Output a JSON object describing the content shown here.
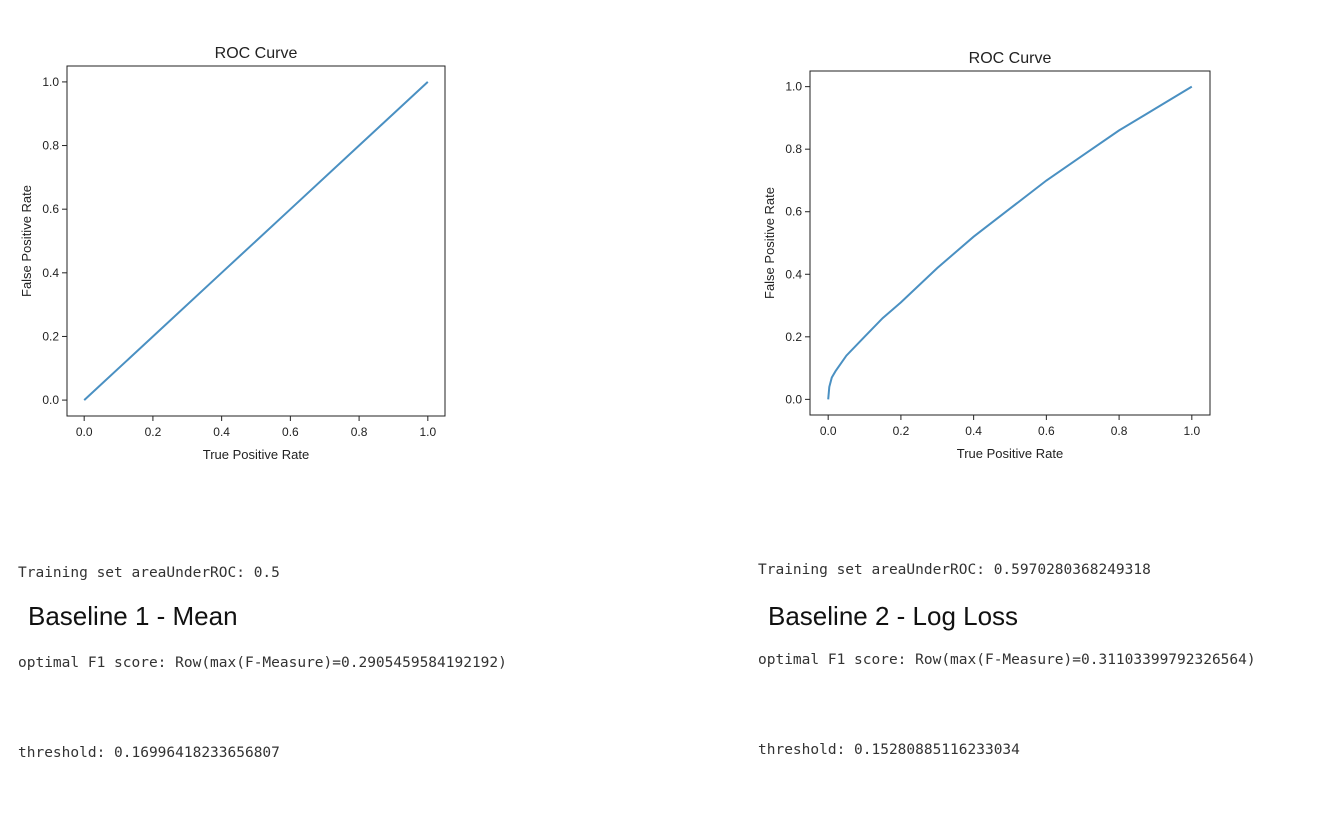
{
  "chart_data": [
    {
      "type": "line",
      "title": "ROC Curve",
      "xlabel": "True Positive Rate",
      "ylabel": "False Positive Rate",
      "xlim": [
        -0.05,
        1.05
      ],
      "ylim": [
        -0.05,
        1.05
      ],
      "xticks": [
        "0.0",
        "0.2",
        "0.4",
        "0.6",
        "0.8",
        "1.0"
      ],
      "yticks": [
        "0.0",
        "0.2",
        "0.4",
        "0.6",
        "0.8",
        "1.0"
      ],
      "grid": false,
      "color": "#4a90c2",
      "x": [
        0.0,
        0.2,
        0.4,
        0.6,
        0.8,
        1.0
      ],
      "y": [
        0.0,
        0.2,
        0.4,
        0.6,
        0.8,
        1.0
      ]
    },
    {
      "type": "line",
      "title": "ROC Curve",
      "xlabel": "True Positive Rate",
      "ylabel": "False Positive Rate",
      "xlim": [
        -0.05,
        1.05
      ],
      "ylim": [
        -0.05,
        1.05
      ],
      "xticks": [
        "0.0",
        "0.2",
        "0.4",
        "0.6",
        "0.8",
        "1.0"
      ],
      "yticks": [
        "0.0",
        "0.2",
        "0.4",
        "0.6",
        "0.8",
        "1.0"
      ],
      "grid": false,
      "color": "#4a90c2",
      "x": [
        0.0,
        0.003,
        0.01,
        0.02,
        0.05,
        0.1,
        0.15,
        0.2,
        0.3,
        0.4,
        0.5,
        0.6,
        0.7,
        0.8,
        0.9,
        1.0
      ],
      "y": [
        0.0,
        0.04,
        0.07,
        0.09,
        0.14,
        0.2,
        0.26,
        0.31,
        0.42,
        0.52,
        0.61,
        0.7,
        0.78,
        0.86,
        0.93,
        1.0
      ]
    }
  ],
  "panels": [
    {
      "metrics": [
        "Training set areaUnderROC: 0.5",
        "optimal F1 score: Row(max(F-Measure)=0.2905459584192192)",
        "threshold: 0.16996418233656807"
      ],
      "caption": "Baseline 1 - Mean"
    },
    {
      "metrics": [
        "Training set areaUnderROC: 0.5970280368249318",
        "optimal F1 score: Row(max(F-Measure)=0.31103399792326564)",
        "threshold: 0.15280885116233034"
      ],
      "caption": "Baseline 2 - Log Loss"
    }
  ]
}
